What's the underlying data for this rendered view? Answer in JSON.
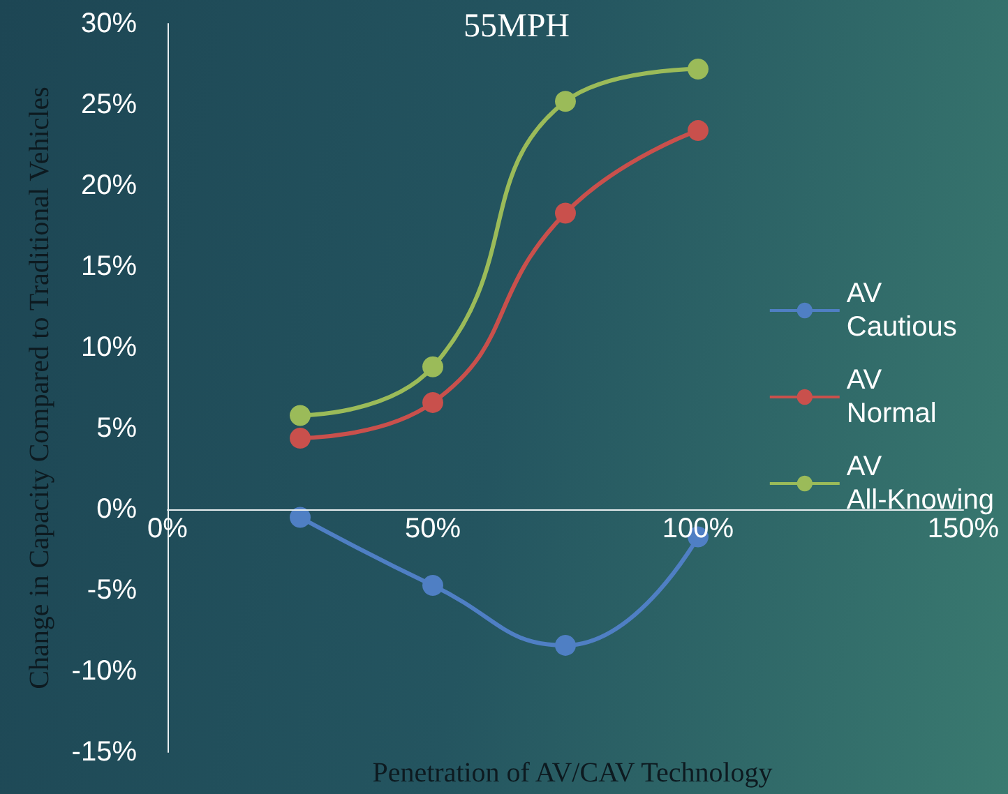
{
  "chart_data": {
    "type": "line",
    "title": "55MPH",
    "xlabel": "Penetration of AV/CAV Technology",
    "ylabel": "Change in Capacity Compared to Traditional Vehicles",
    "x": [
      25,
      50,
      75,
      100
    ],
    "series": [
      {
        "name": "AV Cautious",
        "color": "#4f7fc4",
        "values": [
          -0.5,
          -4.7,
          -8.4,
          -1.7
        ]
      },
      {
        "name": "AV Normal",
        "color": "#c9504c",
        "values": [
          4.4,
          6.6,
          18.3,
          23.4
        ]
      },
      {
        "name": "AV All-Knowing",
        "color": "#9bbb59",
        "values": [
          5.8,
          8.8,
          25.2,
          27.2
        ]
      }
    ],
    "xlim": [
      0,
      150
    ],
    "xticks": [
      {
        "value": 0,
        "label": "0%"
      },
      {
        "value": 50,
        "label": "50%"
      },
      {
        "value": 100,
        "label": "100%"
      },
      {
        "value": 150,
        "label": "150%"
      }
    ],
    "ylim": [
      -15,
      30
    ],
    "yticks": [
      {
        "value": -15,
        "label": "-15%"
      },
      {
        "value": -10,
        "label": "-10%"
      },
      {
        "value": -5,
        "label": "-5%"
      },
      {
        "value": 0,
        "label": "0%"
      },
      {
        "value": 5,
        "label": "5%"
      },
      {
        "value": 10,
        "label": "10%"
      },
      {
        "value": 15,
        "label": "15%"
      },
      {
        "value": 20,
        "label": "20%"
      },
      {
        "value": 25,
        "label": "25%"
      },
      {
        "value": 30,
        "label": "30%"
      }
    ],
    "grid": false,
    "legend": "right",
    "marker": "circle",
    "line_style": "solid"
  }
}
